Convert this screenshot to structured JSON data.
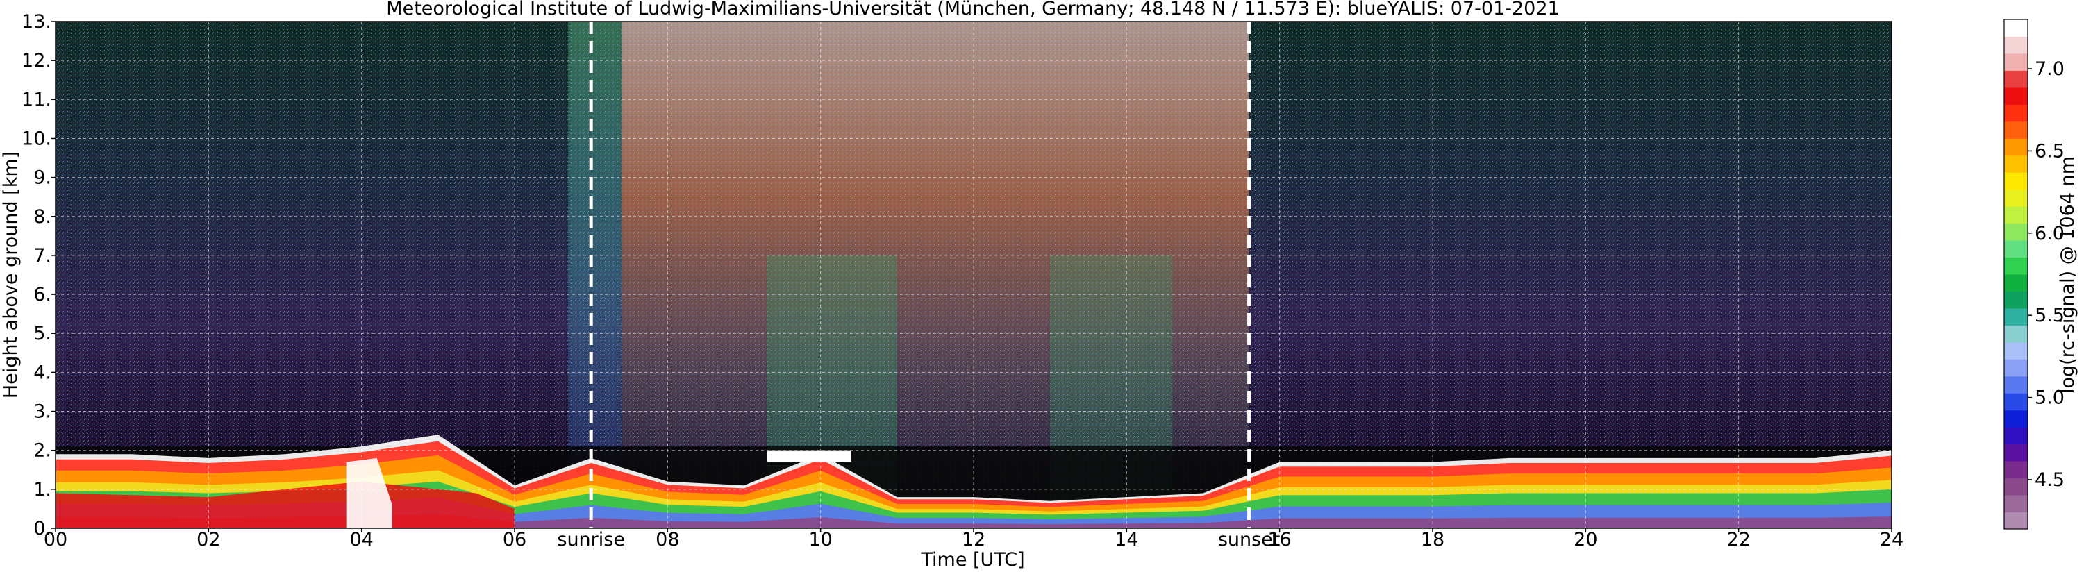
{
  "chart_data": {
    "type": "heatmap",
    "title": "Meteorological Institute of Ludwig-Maximilians-Universität (München, Germany; 48.148 N / 11.573 E):    blueYALIS: 07-01-2021",
    "xlabel": "Time [UTC]",
    "ylabel": "Height above ground [km]",
    "x_range": [
      0,
      24
    ],
    "y_range": [
      0,
      13
    ],
    "x_ticks": [
      0,
      2,
      4,
      6,
      8,
      10,
      12,
      14,
      16,
      18,
      20,
      22,
      24
    ],
    "x_tick_labels": [
      "00",
      "02",
      "04",
      "06",
      "08",
      "10",
      "12",
      "14",
      "16",
      "18",
      "20",
      "22",
      "24"
    ],
    "y_ticks": [
      0,
      1,
      2,
      3,
      4,
      5,
      6,
      7,
      8,
      9,
      10,
      11,
      12,
      13
    ],
    "y_tick_labels": [
      "0.",
      "1.",
      "2.",
      "3.",
      "4.",
      "5.",
      "6.",
      "7.",
      "8.",
      "9.",
      "10.",
      "11.",
      "12.",
      "13."
    ],
    "grid": true,
    "annotations": [
      {
        "label": "sunrise",
        "x": 7.0
      },
      {
        "label": "sunset",
        "x": 15.6
      }
    ],
    "colorbar": {
      "label": "log(rc-signal) @ 1064 nm",
      "range": [
        4.2,
        7.3
      ],
      "ticks": [
        4.5,
        5.0,
        5.5,
        6.0,
        6.5,
        7.0
      ],
      "tick_labels": [
        "4.5",
        "5.0",
        "5.5",
        "6.0",
        "6.5",
        "7.0"
      ],
      "colors": [
        "#b08db0",
        "#9b6a9b",
        "#8a4a8a",
        "#7a2a8a",
        "#5a10a0",
        "#3010c0",
        "#1020d8",
        "#2a4ae8",
        "#5a78f0",
        "#8aa0f4",
        "#aac0f8",
        "#8ad0d0",
        "#30b0a0",
        "#10a060",
        "#10b040",
        "#30d050",
        "#60e080",
        "#90e860",
        "#c0f040",
        "#e8f020",
        "#ffe800",
        "#ffc000",
        "#ff9800",
        "#ff6010",
        "#ff3010",
        "#ee1010",
        "#e84040",
        "#f0b0b0",
        "#f4d4d4",
        "#ffffff"
      ]
    },
    "boundary_layer_top_km": [
      [
        0,
        1.9
      ],
      [
        1,
        1.9
      ],
      [
        2,
        1.8
      ],
      [
        3,
        1.9
      ],
      [
        4,
        2.1
      ],
      [
        5,
        2.4
      ],
      [
        6,
        1.1
      ],
      [
        7,
        1.8
      ],
      [
        8,
        1.2
      ],
      [
        9,
        1.1
      ],
      [
        10,
        1.9
      ],
      [
        11,
        0.8
      ],
      [
        12,
        0.8
      ],
      [
        13,
        0.7
      ],
      [
        14,
        0.8
      ],
      [
        15,
        0.9
      ],
      [
        16,
        1.7
      ],
      [
        17,
        1.7
      ],
      [
        18,
        1.7
      ],
      [
        19,
        1.8
      ],
      [
        20,
        1.8
      ],
      [
        21,
        1.8
      ],
      [
        22,
        1.8
      ],
      [
        23,
        1.8
      ],
      [
        24,
        2.0
      ]
    ]
  }
}
